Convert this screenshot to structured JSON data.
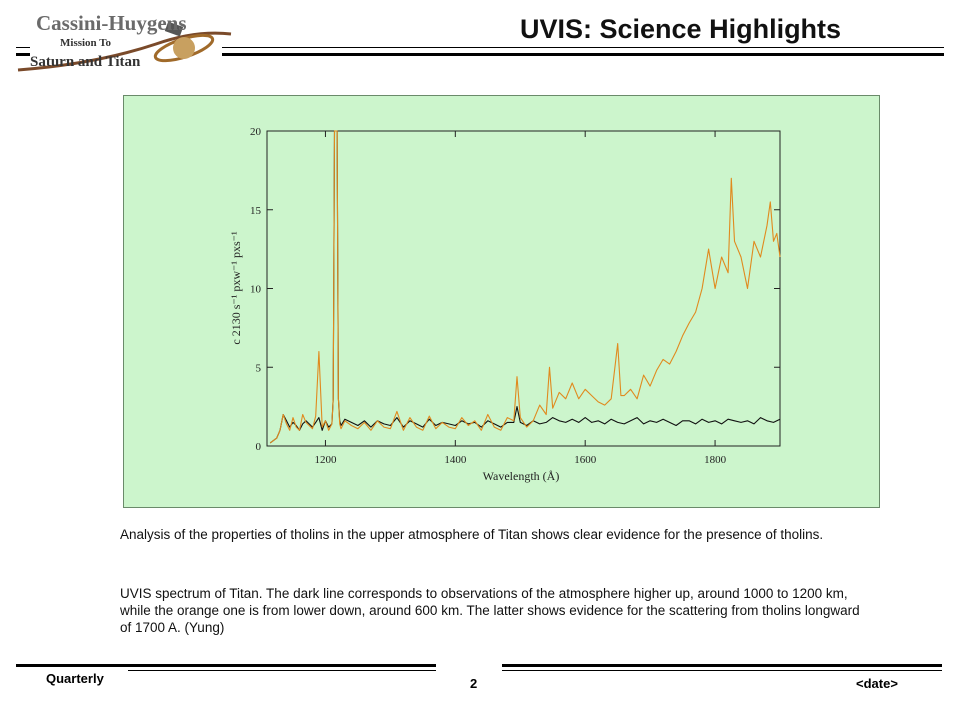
{
  "header": {
    "logo_line1": "Cassini-Huygens",
    "logo_line2": "Mission To",
    "logo_line3": "Saturn and Titan",
    "title": "UVIS: Science Highlights"
  },
  "chart_data": {
    "type": "line",
    "xlabel": "Wavelength (Å)",
    "ylabel": "c 2130 s⁻¹ pxw⁻¹ pxs⁻¹",
    "xlim": [
      1110,
      1900
    ],
    "ylim": [
      0,
      20
    ],
    "x_ticks": [
      1200,
      1400,
      1600,
      1800
    ],
    "y_ticks": [
      0,
      5,
      10,
      15,
      20
    ],
    "grid": false,
    "colors": {
      "dark": "#111111",
      "orange": "#e08a1e",
      "background": "#ccf5cc"
    },
    "series": [
      {
        "key": "dark",
        "x": [
          1115,
          1125,
          1130,
          1135,
          1140,
          1145,
          1150,
          1155,
          1160,
          1165,
          1170,
          1180,
          1185,
          1190,
          1195,
          1200,
          1205,
          1210,
          1212,
          1214,
          1216,
          1218,
          1220,
          1222,
          1224,
          1230,
          1240,
          1250,
          1260,
          1270,
          1280,
          1290,
          1300,
          1310,
          1320,
          1330,
          1340,
          1350,
          1360,
          1370,
          1380,
          1390,
          1400,
          1410,
          1420,
          1430,
          1440,
          1450,
          1460,
          1470,
          1480,
          1490,
          1495,
          1500,
          1510,
          1520,
          1530,
          1540,
          1550,
          1560,
          1570,
          1580,
          1590,
          1600,
          1610,
          1620,
          1630,
          1640,
          1650,
          1660,
          1670,
          1680,
          1690,
          1700,
          1710,
          1720,
          1730,
          1740,
          1750,
          1760,
          1770,
          1780,
          1790,
          1800,
          1810,
          1820,
          1830,
          1840,
          1850,
          1860,
          1870,
          1880,
          1890,
          1900
        ],
        "y": [
          0.2,
          0.5,
          1.0,
          2.0,
          1.6,
          1.2,
          1.5,
          1.3,
          1.0,
          1.4,
          1.6,
          1.2,
          1.5,
          1.8,
          1.0,
          1.6,
          1.2,
          1.4,
          3.0,
          20,
          20,
          20,
          3.0,
          1.6,
          1.3,
          1.7,
          1.5,
          1.3,
          1.6,
          1.2,
          1.6,
          1.4,
          1.3,
          1.8,
          1.2,
          1.6,
          1.4,
          1.2,
          1.7,
          1.3,
          1.5,
          1.4,
          1.3,
          1.6,
          1.4,
          1.5,
          1.2,
          1.6,
          1.4,
          1.2,
          1.5,
          1.5,
          2.5,
          1.5,
          1.3,
          1.6,
          1.4,
          1.5,
          1.8,
          1.6,
          1.5,
          1.7,
          1.5,
          1.8,
          1.5,
          1.6,
          1.4,
          1.7,
          1.5,
          1.4,
          1.6,
          1.8,
          1.4,
          1.6,
          1.5,
          1.7,
          1.5,
          1.3,
          1.6,
          1.6,
          1.4,
          1.7,
          1.5,
          1.6,
          1.4,
          1.7,
          1.6,
          1.5,
          1.6,
          1.4,
          1.8,
          1.6,
          1.5,
          1.7
        ]
      },
      {
        "key": "orange",
        "x": [
          1115,
          1125,
          1130,
          1135,
          1140,
          1145,
          1150,
          1155,
          1160,
          1165,
          1170,
          1180,
          1185,
          1190,
          1195,
          1200,
          1205,
          1210,
          1212,
          1214,
          1216,
          1218,
          1220,
          1222,
          1224,
          1230,
          1240,
          1250,
          1260,
          1270,
          1280,
          1290,
          1300,
          1310,
          1320,
          1330,
          1340,
          1350,
          1360,
          1370,
          1380,
          1390,
          1400,
          1410,
          1420,
          1430,
          1440,
          1450,
          1460,
          1470,
          1480,
          1490,
          1495,
          1500,
          1510,
          1520,
          1530,
          1540,
          1545,
          1550,
          1560,
          1570,
          1580,
          1590,
          1600,
          1610,
          1620,
          1630,
          1640,
          1650,
          1655,
          1660,
          1670,
          1680,
          1690,
          1700,
          1710,
          1720,
          1730,
          1740,
          1750,
          1760,
          1770,
          1780,
          1790,
          1800,
          1810,
          1820,
          1825,
          1830,
          1840,
          1850,
          1860,
          1870,
          1880,
          1885,
          1890,
          1895,
          1900
        ],
        "y": [
          0.2,
          0.5,
          1.0,
          2.0,
          1.4,
          1.0,
          1.8,
          1.2,
          1.0,
          2.0,
          1.5,
          1.1,
          1.9,
          6.0,
          1.2,
          1.6,
          1.0,
          1.4,
          3.0,
          20,
          20,
          20,
          3.0,
          1.4,
          1.1,
          1.6,
          1.3,
          1.1,
          1.5,
          1.0,
          1.6,
          1.2,
          1.1,
          2.2,
          1.0,
          1.8,
          1.2,
          1.0,
          1.9,
          1.1,
          1.5,
          1.2,
          1.1,
          1.8,
          1.3,
          1.6,
          1.0,
          2.0,
          1.2,
          1.0,
          1.8,
          1.6,
          4.4,
          1.8,
          1.2,
          1.6,
          2.6,
          2.0,
          5.0,
          2.4,
          3.4,
          3.0,
          4.0,
          3.0,
          3.6,
          3.2,
          2.8,
          2.6,
          3.0,
          6.5,
          3.2,
          3.2,
          3.6,
          3.0,
          4.5,
          3.8,
          4.8,
          5.5,
          5.2,
          6.0,
          7.0,
          7.8,
          8.5,
          10.0,
          12.5,
          10.0,
          12.0,
          11.0,
          17.0,
          13.0,
          12.0,
          10.0,
          13.0,
          12.0,
          14.0,
          15.5,
          13.0,
          13.5,
          12.0
        ]
      }
    ]
  },
  "text": {
    "para1": "Analysis of the properties of tholins in the upper atmosphere of Titan shows clear evidence for the presence of tholins.",
    "para2": "UVIS spectrum of Titan. The dark line corresponds to observations of the atmosphere higher up, around 1000 to 1200 km, while the orange one is from lower down, around 600 km. The latter shows evidence for the scattering from tholins longward of 1700 A. (Yung)"
  },
  "footer": {
    "left": "Quarterly",
    "page": "2",
    "date": "<date>"
  }
}
